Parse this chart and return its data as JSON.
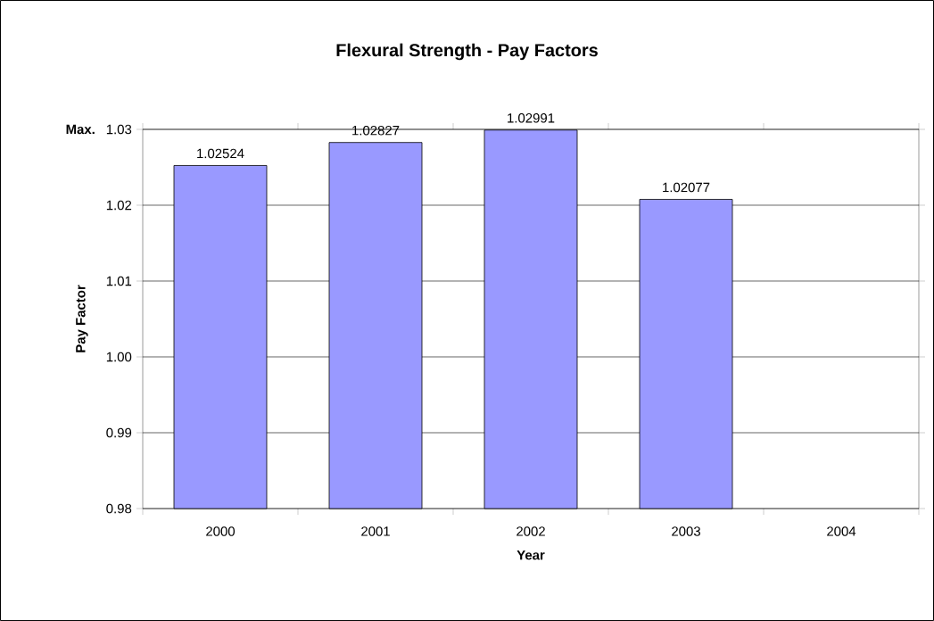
{
  "chart_data": {
    "type": "bar",
    "title": "Flexural Strength - Pay Factors",
    "xlabel": "Year",
    "ylabel": "Pay Factor",
    "categories": [
      "2000",
      "2001",
      "2002",
      "2003",
      "2004"
    ],
    "values": [
      1.02524,
      1.02827,
      1.02991,
      1.02077,
      null
    ],
    "color": "#9999ff",
    "data_labels": true,
    "grid": "y",
    "ylim": [
      0.98,
      1.03
    ],
    "yticks": [
      0.98,
      0.99,
      {
        "value": 1.0,
        "label": "1.00"
      },
      1.01,
      1.02,
      1.03
    ],
    "annotations": [
      "Max."
    ]
  }
}
